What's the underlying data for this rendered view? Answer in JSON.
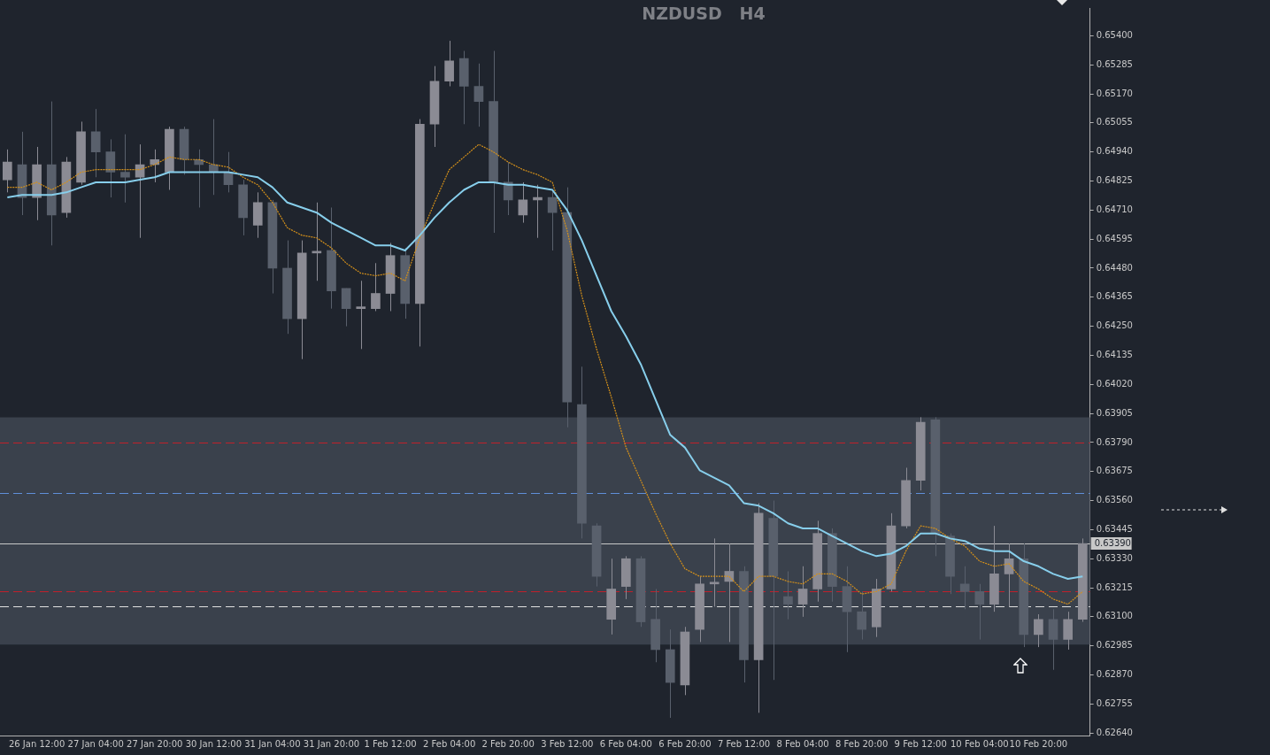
{
  "chart_data": {
    "type": "candlestick",
    "title": "NZDUSD   H4",
    "categories": [
      null,
      null,
      "26 Jan 12:00",
      null,
      null,
      null,
      "27 Jan 04:00",
      null,
      null,
      null,
      "27 Jan 20:00",
      null,
      null,
      null,
      "30 Jan 12:00",
      null,
      null,
      null,
      "31 Jan 04:00",
      null,
      null,
      null,
      "31 Jan 20:00",
      null,
      null,
      null,
      "1 Feb 12:00",
      null,
      null,
      null,
      "2 Feb 04:00",
      null,
      null,
      null,
      "2 Feb 20:00",
      null,
      null,
      null,
      "3 Feb 12:00",
      null,
      null,
      null,
      "6 Feb 04:00",
      null,
      null,
      null,
      "6 Feb 20:00",
      null,
      null,
      null,
      "7 Feb 12:00",
      null,
      null,
      null,
      "8 Feb 04:00",
      null,
      null,
      null,
      "8 Feb 20:00",
      null,
      null,
      null,
      "9 Feb 12:00",
      null,
      null,
      null,
      "10 Feb 04:00",
      null,
      null,
      null,
      "10 Feb 20:00",
      null,
      null,
      null
    ],
    "ohlc": [
      [
        0.6483,
        0.6495,
        0.6478,
        0.649
      ],
      [
        0.6489,
        0.6502,
        0.6469,
        0.6476
      ],
      [
        0.6476,
        0.6496,
        0.6467,
        0.6489
      ],
      [
        0.6489,
        0.6514,
        0.6457,
        0.6469
      ],
      [
        0.647,
        0.6492,
        0.6468,
        0.649
      ],
      [
        0.6482,
        0.6506,
        0.6481,
        0.6502
      ],
      [
        0.6502,
        0.6511,
        0.6484,
        0.6494
      ],
      [
        0.6494,
        0.6499,
        0.6476,
        0.6486
      ],
      [
        0.6486,
        0.6501,
        0.6474,
        0.6484
      ],
      [
        0.6484,
        0.6497,
        0.646,
        0.6489
      ],
      [
        0.6489,
        0.6495,
        0.6482,
        0.6491
      ],
      [
        0.6486,
        0.6504,
        0.6479,
        0.6503
      ],
      [
        0.6503,
        0.6504,
        0.6485,
        0.6491
      ],
      [
        0.6491,
        0.6495,
        0.6472,
        0.6489
      ],
      [
        0.6489,
        0.6507,
        0.6477,
        0.6486
      ],
      [
        0.6486,
        0.6494,
        0.6478,
        0.6481
      ],
      [
        0.6481,
        0.6483,
        0.6461,
        0.6468
      ],
      [
        0.6465,
        0.6478,
        0.646,
        0.6474
      ],
      [
        0.6474,
        0.6475,
        0.6438,
        0.6448
      ],
      [
        0.6448,
        0.6459,
        0.6422,
        0.6428
      ],
      [
        0.6428,
        0.6459,
        0.6412,
        0.6454
      ],
      [
        0.6454,
        0.6474,
        0.6443,
        0.6454
      ],
      [
        0.6455,
        0.6472,
        0.6432,
        0.6439
      ],
      [
        0.644,
        0.644,
        0.6425,
        0.6432
      ],
      [
        0.6432,
        0.6443,
        0.6416,
        0.6432
      ],
      [
        0.6432,
        0.645,
        0.6431,
        0.6438
      ],
      [
        0.6438,
        0.6458,
        0.6431,
        0.6453
      ],
      [
        0.6453,
        0.6456,
        0.6428,
        0.6434
      ],
      [
        0.6434,
        0.6507,
        0.6417,
        0.6505
      ],
      [
        0.6505,
        0.6528,
        0.6496,
        0.6522
      ],
      [
        0.6522,
        0.6538,
        0.652,
        0.653
      ],
      [
        0.6531,
        0.6534,
        0.6505,
        0.652
      ],
      [
        0.652,
        0.6529,
        0.6504,
        0.6514
      ],
      [
        0.6514,
        0.6534,
        0.6462,
        0.6482
      ],
      [
        0.6482,
        0.649,
        0.6469,
        0.6475
      ],
      [
        0.6469,
        0.6482,
        0.6466,
        0.6475
      ],
      [
        0.6475,
        0.6481,
        0.646,
        0.6476
      ],
      [
        0.6476,
        0.6479,
        0.6455,
        0.647
      ],
      [
        0.647,
        0.648,
        0.6385,
        0.6395
      ],
      [
        0.6394,
        0.6409,
        0.6341,
        0.6347
      ],
      [
        0.6346,
        0.6347,
        0.6322,
        0.6326
      ],
      [
        0.6309,
        0.6333,
        0.6303,
        0.6321
      ],
      [
        0.6322,
        0.6334,
        0.6317,
        0.6333
      ],
      [
        0.6333,
        0.6334,
        0.6306,
        0.6308
      ],
      [
        0.6309,
        0.6321,
        0.6292,
        0.6297
      ],
      [
        0.6297,
        0.6305,
        0.627,
        0.6284
      ],
      [
        0.6283,
        0.6306,
        0.6279,
        0.6304
      ],
      [
        0.6305,
        0.6326,
        0.63,
        0.6323
      ],
      [
        0.6323,
        0.6341,
        0.6314,
        0.6323
      ],
      [
        0.6324,
        0.6339,
        0.63,
        0.6328
      ],
      [
        0.6328,
        0.633,
        0.6284,
        0.6293
      ],
      [
        0.6293,
        0.6355,
        0.6272,
        0.6351
      ],
      [
        0.6349,
        0.6356,
        0.6285,
        0.6326
      ],
      [
        0.6318,
        0.6328,
        0.6309,
        0.6315
      ],
      [
        0.6315,
        0.633,
        0.631,
        0.6321
      ],
      [
        0.6321,
        0.6348,
        0.6316,
        0.6343
      ],
      [
        0.6343,
        0.6345,
        0.6316,
        0.6322
      ],
      [
        0.6322,
        0.633,
        0.6296,
        0.6312
      ],
      [
        0.6312,
        0.632,
        0.6301,
        0.6305
      ],
      [
        0.6306,
        0.6325,
        0.6302,
        0.6321
      ],
      [
        0.6321,
        0.6351,
        0.632,
        0.6346
      ],
      [
        0.6346,
        0.6369,
        0.6345,
        0.6364
      ],
      [
        0.6364,
        0.6389,
        0.636,
        0.6387
      ],
      [
        0.6388,
        0.6389,
        0.6334,
        0.6343
      ],
      [
        0.6342,
        0.6343,
        0.6319,
        0.6326
      ],
      [
        0.6323,
        0.633,
        0.6313,
        0.632
      ],
      [
        0.632,
        0.6323,
        0.6301,
        0.6315
      ],
      [
        0.6315,
        0.6346,
        0.6312,
        0.6327
      ],
      [
        0.6327,
        0.6339,
        0.6314,
        0.6333
      ],
      [
        0.6333,
        0.6339,
        0.6298,
        0.6303
      ],
      [
        0.6303,
        0.6311,
        0.6298,
        0.6309
      ],
      [
        0.6309,
        0.6313,
        0.6289,
        0.6301
      ],
      [
        0.6301,
        0.6312,
        0.6297,
        0.6309
      ],
      [
        0.6309,
        0.6341,
        0.6308,
        0.6339
      ]
    ],
    "colors": [
      "#8b8b94",
      "#59606c",
      "#8b8b94",
      "#59606c",
      "#8b8b94",
      "#8b8b94",
      "#59606c",
      "#59606c",
      "#59606c",
      "#8b8b94",
      "#8b8b94",
      "#8b8b94",
      "#59606c",
      "#59606c",
      "#59606c",
      "#59606c",
      "#59606c",
      "#8b8b94",
      "#59606c",
      "#59606c",
      "#8b8b94",
      "#8b8b94",
      "#59606c",
      "#59606c",
      "#8b8b94",
      "#8b8b94",
      "#8b8b94",
      "#59606c",
      "#8b8b94",
      "#8b8b94",
      "#8b8b94",
      "#59606c",
      "#59606c",
      "#59606c",
      "#59606c",
      "#8b8b94",
      "#8b8b94",
      "#59606c",
      "#59606c",
      "#59606c",
      "#59606c",
      "#8b8b94",
      "#8b8b94",
      "#59606c",
      "#59606c",
      "#59606c",
      "#8b8b94",
      "#8b8b94",
      "#8b8b94",
      "#8b8b94",
      "#59606c",
      "#8b8b94",
      "#59606c",
      "#59606c",
      "#8b8b94",
      "#8b8b94",
      "#59606c",
      "#59606c",
      "#59606c",
      "#8b8b94",
      "#8b8b94",
      "#8b8b94",
      "#8b8b94",
      "#59606c",
      "#59606c",
      "#59606c",
      "#59606c",
      "#8b8b94",
      "#8b8b94",
      "#59606c",
      "#8b8b94",
      "#59606c",
      "#8b8b94",
      "#8b8b94"
    ],
    "series": [
      {
        "type": "line",
        "color": "#87ceeb",
        "line_style": "solid",
        "values": [
          0.6476,
          0.6477,
          0.6477,
          0.6477,
          0.6478,
          0.648,
          0.6482,
          0.6482,
          0.6482,
          0.6483,
          0.6484,
          0.6486,
          0.6486,
          0.6486,
          0.6486,
          0.6486,
          0.6485,
          0.6484,
          0.648,
          0.6474,
          0.6472,
          0.647,
          0.6466,
          0.6463,
          0.646,
          0.6457,
          0.6457,
          0.6455,
          0.6461,
          0.6468,
          0.6474,
          0.6479,
          0.6482,
          0.6482,
          0.6481,
          0.6481,
          0.648,
          0.6479,
          0.6471,
          0.6459,
          0.6445,
          0.6431,
          0.6421,
          0.641,
          0.6396,
          0.6382,
          0.6377,
          0.6368,
          0.6365,
          0.6362,
          0.6355,
          0.6354,
          0.6351,
          0.6347,
          0.6345,
          0.6345,
          0.6342,
          0.6339,
          0.6336,
          0.6334,
          0.6335,
          0.6338,
          0.6343,
          0.6343,
          0.6341,
          0.634,
          0.6337,
          0.6336,
          0.6336,
          0.6332,
          0.633,
          0.6327,
          0.6325,
          0.6326
        ]
      },
      {
        "type": "line",
        "color": "#d4901a",
        "line_style": "dotted",
        "values": [
          0.648,
          0.648,
          0.6482,
          0.6479,
          0.6482,
          0.6486,
          0.6487,
          0.6487,
          0.6487,
          0.6487,
          0.6489,
          0.6492,
          0.6491,
          0.6491,
          0.6489,
          0.6488,
          0.6484,
          0.6481,
          0.6474,
          0.6464,
          0.6461,
          0.646,
          0.6456,
          0.645,
          0.6446,
          0.6445,
          0.6446,
          0.6443,
          0.646,
          0.6474,
          0.6487,
          0.6492,
          0.6497,
          0.6494,
          0.649,
          0.6487,
          0.6485,
          0.6482,
          0.6463,
          0.6437,
          0.6416,
          0.6397,
          0.6377,
          0.6364,
          0.6351,
          0.6339,
          0.6329,
          0.6326,
          0.6326,
          0.6326,
          0.632,
          0.6326,
          0.6326,
          0.6324,
          0.6323,
          0.6327,
          0.6327,
          0.6324,
          0.6319,
          0.632,
          0.6323,
          0.6336,
          0.6346,
          0.6345,
          0.6341,
          0.6338,
          0.6332,
          0.633,
          0.6331,
          0.6324,
          0.6321,
          0.6317,
          0.6315,
          0.632
        ]
      }
    ],
    "ylim": [
      0.6263,
      0.6551
    ],
    "yticks": [
      {
        "value": 0.654,
        "label": "0.65400"
      },
      0.65285,
      {
        "value": 0.6517,
        "label": "0.65170"
      },
      0.65055,
      {
        "value": 0.6494,
        "label": "0.64940"
      },
      0.64825,
      {
        "value": 0.6471,
        "label": "0.64710"
      },
      0.64595,
      {
        "value": 0.6448,
        "label": "0.64480"
      },
      0.64365,
      {
        "value": 0.6425,
        "label": "0.64250"
      },
      0.64135,
      {
        "value": 0.6402,
        "label": "0.64020"
      },
      0.63905,
      {
        "value": 0.6379,
        "label": "0.63790"
      },
      0.63675,
      {
        "value": 0.6356,
        "label": "0.63560"
      },
      0.63445,
      {
        "value": 0.6333,
        "label": "0.63330"
      },
      0.63215,
      {
        "value": 0.631,
        "label": "0.63100"
      },
      0.62985,
      {
        "value": 0.6287,
        "label": "0.62870"
      },
      0.62755,
      {
        "value": 0.6264,
        "label": "0.62640"
      }
    ],
    "bands": [
      {
        "axis": "y",
        "from": 0.6299,
        "to": 0.6389,
        "color": "#3a414c"
      }
    ],
    "ref_lines": [
      {
        "axis": "y",
        "value": 0.6379,
        "color": "#c0202a",
        "line_style": "dashed"
      },
      {
        "axis": "y",
        "value": 0.632,
        "color": "#c0202a",
        "line_style": "dashed"
      },
      {
        "axis": "y",
        "value": 0.6314,
        "color": "#e0e0e0",
        "line_style": "dashed"
      },
      {
        "axis": "y",
        "value": 0.6359,
        "color": "#5f8fd8",
        "line_style": "dashed"
      },
      {
        "axis": "y",
        "value": 0.6339,
        "color": "#c8c8c8",
        "line_style": "solid",
        "label": "0.63390"
      }
    ]
  }
}
